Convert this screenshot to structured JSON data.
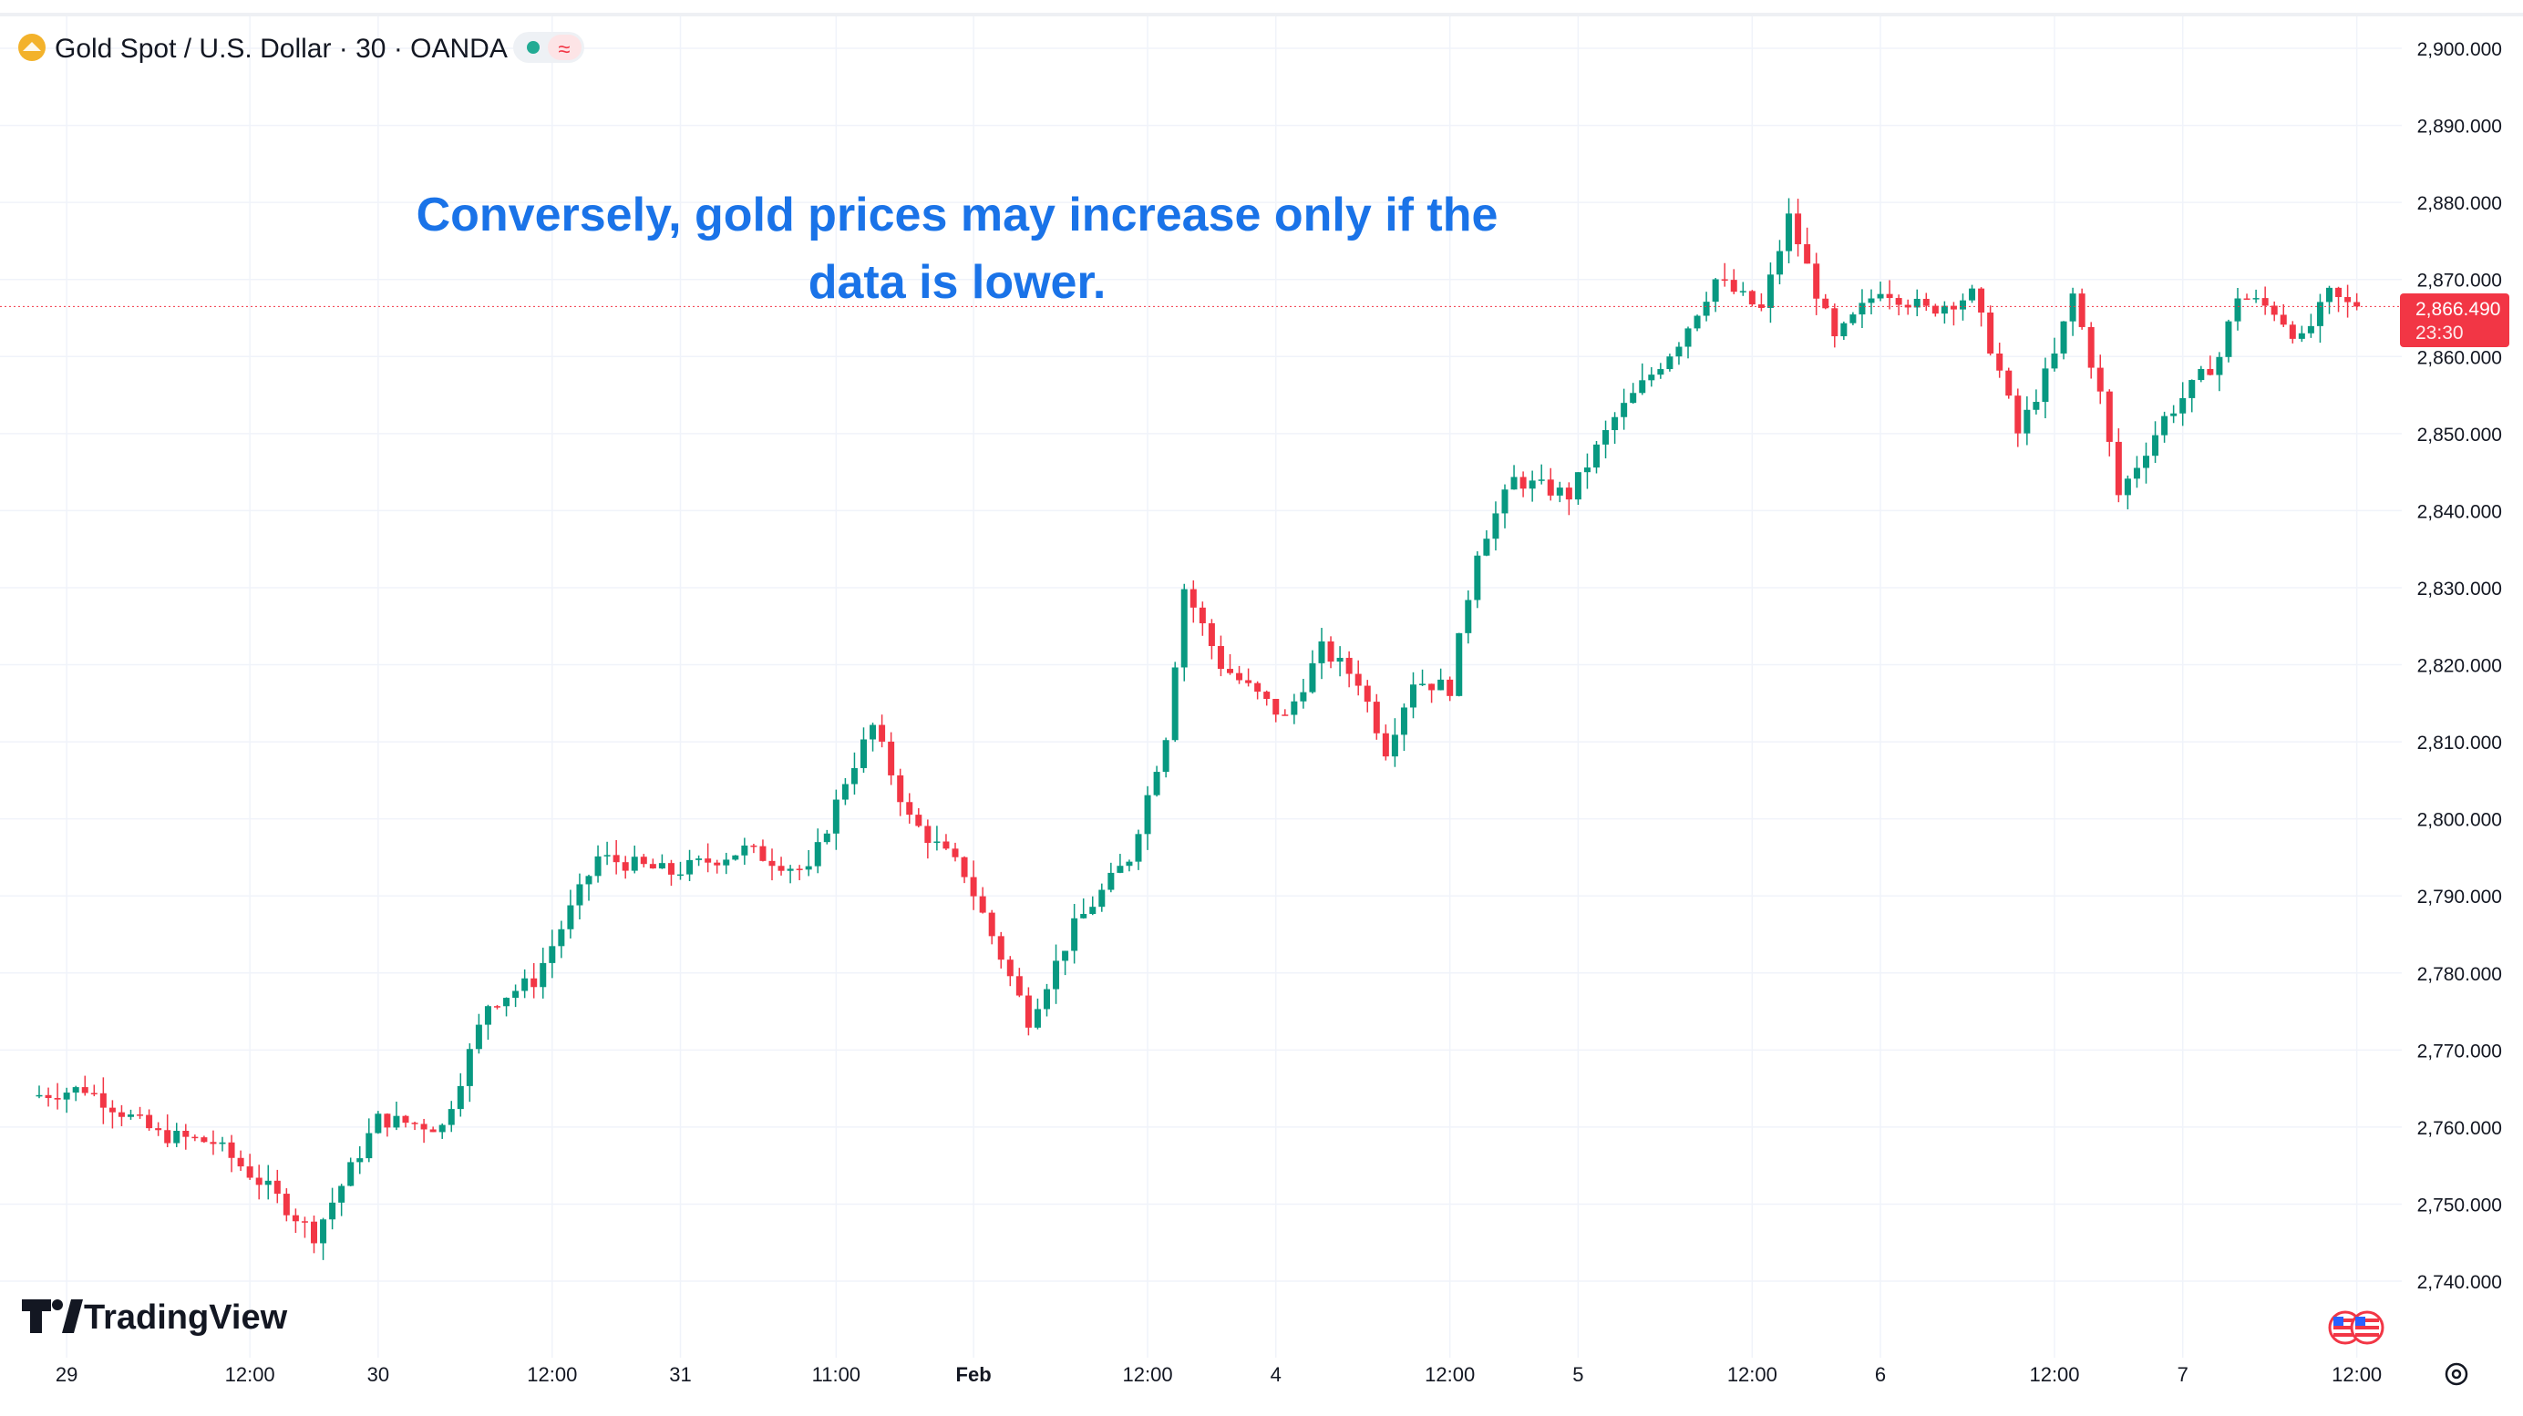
{
  "header": {
    "symbol_label": "Gold Spot / U.S. Dollar · 30 · OANDA",
    "badge_dot_color": "#22ab94",
    "badge_wave_glyph": "≈"
  },
  "annotation": {
    "line1": "Conversely, gold prices may increase only if the",
    "line2": "data is lower.",
    "color": "#1a73e8"
  },
  "price_label": {
    "price": "2,866.490",
    "countdown": "23:30",
    "color": "#f23645"
  },
  "branding": {
    "logo_text": "TradingView"
  },
  "colors": {
    "up": "#089981",
    "down": "#f23645",
    "grid": "#f0f3fa",
    "text": "#131722"
  },
  "chart_data": {
    "type": "candlestick",
    "title": "Gold Spot / U.S. Dollar · 30 · OANDA",
    "ylim": [
      2735,
      2905
    ],
    "y_ticks": [
      {
        "value": 2900,
        "label": "2,900.000"
      },
      {
        "value": 2890,
        "label": "2,890.000"
      },
      {
        "value": 2880,
        "label": "2,880.000"
      },
      {
        "value": 2870,
        "label": "2,870.000"
      },
      {
        "value": 2860,
        "label": "2,860.000"
      },
      {
        "value": 2850,
        "label": "2,850.000"
      },
      {
        "value": 2840,
        "label": "2,840.000"
      },
      {
        "value": 2830,
        "label": "2,830.000"
      },
      {
        "value": 2820,
        "label": "2,820.000"
      },
      {
        "value": 2810,
        "label": "2,810.000"
      },
      {
        "value": 2800,
        "label": "2,800.000"
      },
      {
        "value": 2790,
        "label": "2,790.000"
      },
      {
        "value": 2780,
        "label": "2,780.000"
      },
      {
        "value": 2770,
        "label": "2,770.000"
      },
      {
        "value": 2760,
        "label": "2,760.000"
      },
      {
        "value": 2750,
        "label": "2,750.000"
      },
      {
        "value": 2740,
        "label": "2,740.000"
      }
    ],
    "x_ticks": [
      {
        "bar": 3,
        "label": "29",
        "bold": false
      },
      {
        "bar": 23,
        "label": "12:00",
        "bold": false
      },
      {
        "bar": 37,
        "label": "30",
        "bold": false
      },
      {
        "bar": 56,
        "label": "12:00",
        "bold": false
      },
      {
        "bar": 70,
        "label": "31",
        "bold": false
      },
      {
        "bar": 87,
        "label": "11:00",
        "bold": false
      },
      {
        "bar": 102,
        "label": "Feb",
        "bold": true
      },
      {
        "bar": 121,
        "label": "12:00",
        "bold": false
      },
      {
        "bar": 135,
        "label": "4",
        "bold": false
      },
      {
        "bar": 154,
        "label": "12:00",
        "bold": false
      },
      {
        "bar": 168,
        "label": "5",
        "bold": false
      },
      {
        "bar": 187,
        "label": "12:00",
        "bold": false
      },
      {
        "bar": 201,
        "label": "6",
        "bold": false
      },
      {
        "bar": 220,
        "label": "12:00",
        "bold": false
      },
      {
        "bar": 234,
        "label": "7",
        "bold": false
      },
      {
        "bar": 253,
        "label": "12:00",
        "bold": false
      }
    ],
    "current_price": 2866.49,
    "bar_count": 254,
    "key_points": [
      [
        0,
        2764
      ],
      [
        6,
        2765
      ],
      [
        14,
        2759
      ],
      [
        20,
        2758
      ],
      [
        26,
        2752
      ],
      [
        31,
        2746
      ],
      [
        38,
        2761
      ],
      [
        45,
        2760
      ],
      [
        50,
        2776
      ],
      [
        55,
        2779
      ],
      [
        62,
        2795
      ],
      [
        70,
        2793
      ],
      [
        78,
        2796
      ],
      [
        85,
        2793
      ],
      [
        89,
        2805
      ],
      [
        92,
        2812
      ],
      [
        96,
        2800
      ],
      [
        102,
        2793
      ],
      [
        109,
        2774
      ],
      [
        114,
        2786
      ],
      [
        120,
        2795
      ],
      [
        124,
        2811
      ],
      [
        126,
        2830
      ],
      [
        130,
        2820
      ],
      [
        137,
        2813
      ],
      [
        141,
        2822
      ],
      [
        145,
        2818
      ],
      [
        148,
        2809
      ],
      [
        151,
        2818
      ],
      [
        155,
        2817
      ],
      [
        158,
        2835
      ],
      [
        162,
        2844
      ],
      [
        168,
        2842
      ],
      [
        173,
        2852
      ],
      [
        180,
        2862
      ],
      [
        184,
        2870
      ],
      [
        189,
        2866
      ],
      [
        192,
        2878
      ],
      [
        197,
        2862
      ],
      [
        202,
        2869
      ],
      [
        207,
        2866
      ],
      [
        212,
        2868
      ],
      [
        215,
        2858
      ],
      [
        217,
        2850
      ],
      [
        221,
        2860
      ],
      [
        223,
        2868
      ],
      [
        226,
        2855
      ],
      [
        228,
        2842
      ],
      [
        233,
        2852
      ],
      [
        239,
        2860
      ],
      [
        241,
        2868
      ],
      [
        245,
        2866
      ],
      [
        248,
        2862
      ],
      [
        251,
        2868
      ],
      [
        254,
        2866
      ]
    ]
  }
}
